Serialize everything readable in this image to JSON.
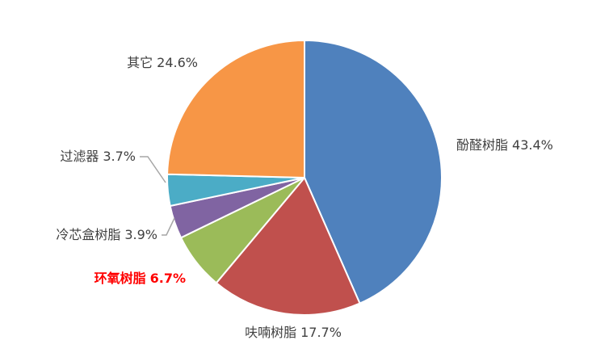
{
  "chart_data": {
    "type": "pie",
    "categories": [
      "酚醛树脂",
      "呋喃树脂",
      "环氧树脂",
      "冷芯盒树脂",
      "过滤器",
      "其它"
    ],
    "values": [
      43.4,
      17.7,
      6.7,
      3.9,
      3.7,
      24.6
    ],
    "value_labels": [
      "43.4%",
      "17.7%",
      "6.7%",
      "3.9%",
      "3.7%",
      "24.6%"
    ],
    "colors": [
      "#4f81bd",
      "#c0504d",
      "#9bbb59",
      "#8064a2",
      "#4bacc6",
      "#f79646"
    ],
    "label_colors": [
      "#404040",
      "#404040",
      "#ff0000",
      "#404040",
      "#404040",
      "#404040"
    ],
    "label_bold": [
      false,
      false,
      true,
      false,
      false,
      false
    ]
  }
}
